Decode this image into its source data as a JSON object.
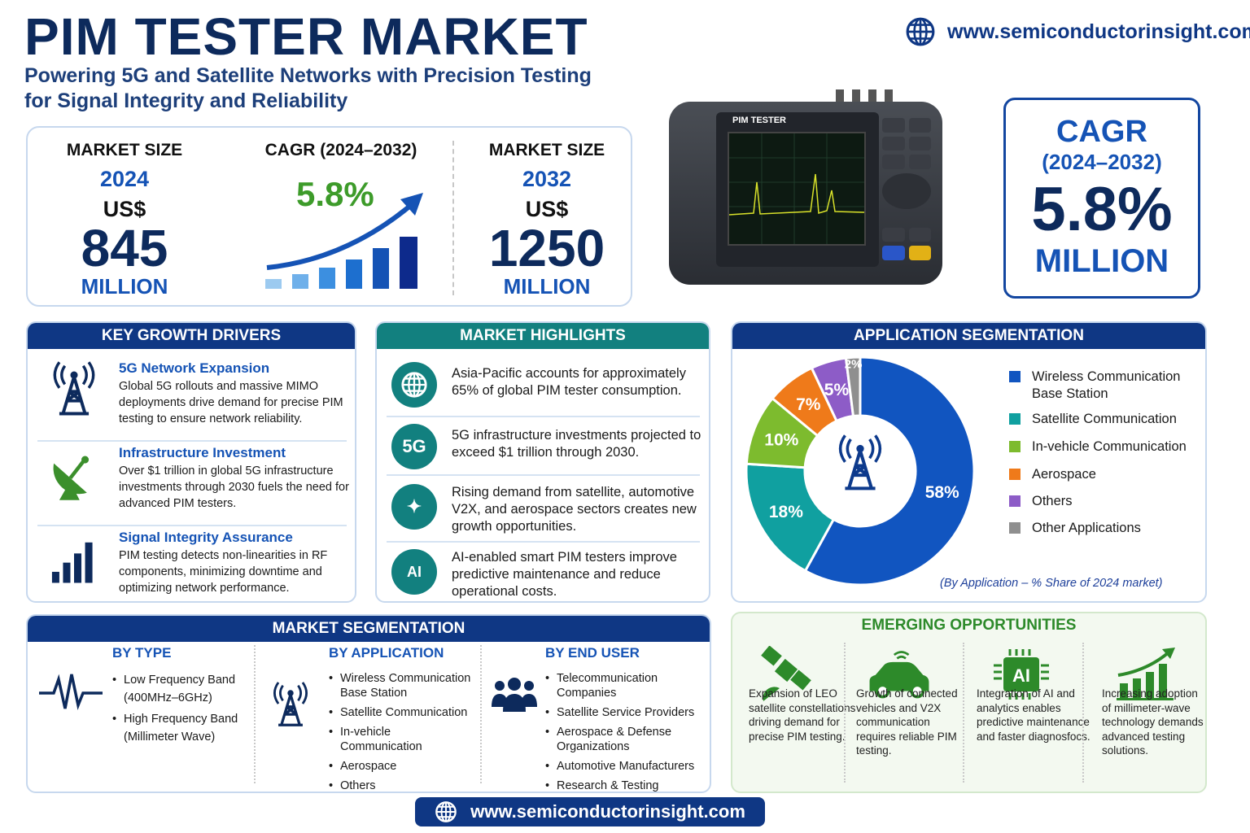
{
  "header": {
    "title": "PIM TESTER MARKET",
    "subtitle": "Powering 5G and Satellite Networks with Precision Testing for Signal Integrity and Reliability",
    "website": "www.semiconductorinsight.com",
    "icon": "globe-icon"
  },
  "market": {
    "left": {
      "label": "MARKET SIZE",
      "year": "2024",
      "currency": "US$",
      "value": "845",
      "unit": "MILLION"
    },
    "center": {
      "label": "CAGR (2024–2032)",
      "value": "5.8%"
    },
    "right": {
      "label": "MARKET SIZE",
      "year": "2032",
      "currency": "US$",
      "value": "1250",
      "unit": "MILLION"
    }
  },
  "device": {
    "label": "PIM TESTER"
  },
  "cagr_box": {
    "label": "CAGR",
    "period": "(2024–2032)",
    "value": "5.8%",
    "unit": "MILLION"
  },
  "drivers": {
    "title": "KEY GROWTH DRIVERS",
    "items": [
      {
        "title": "5G Network Expansion",
        "text": "Global 5G rollouts and massive MIMO deployments drive demand for precise PIM testing to ensure network reliability.",
        "icon": "cell-tower-icon"
      },
      {
        "title": "Infrastructure Investment",
        "text": "Over $1 trillion in global 5G infrastructure investments through 2030 fuels the need for advanced PIM testers.",
        "icon": "satellite-dish-icon"
      },
      {
        "title": "Signal Integrity Assurance",
        "text": "PIM testing detects non-linearities in RF components, minimizing downtime and optimizing network performance.",
        "icon": "signal-bars-icon"
      }
    ]
  },
  "highlights": {
    "title": "MARKET HIGHLIGHTS",
    "items": [
      {
        "icon": "globe-icon",
        "badge": "",
        "text": "Asia-Pacific accounts for approximately 65% of global PIM tester consumption."
      },
      {
        "icon": "5g-icon",
        "badge": "5G",
        "text": "5G infrastructure investments projected to exceed $1 trillion through 2030."
      },
      {
        "icon": "satellite-icon",
        "badge": "",
        "text": "Rising demand from satellite, automotive V2X, and aerospace sectors creates new growth opportunities."
      },
      {
        "icon": "ai-chip-icon",
        "badge": "AI",
        "text": "AI-enabled smart PIM testers improve predictive maintenance and reduce operational costs."
      }
    ]
  },
  "application": {
    "title": "APPLICATION SEGMENTATION",
    "caption": "(By Application – % Share of 2024 market)"
  },
  "chart_data": {
    "type": "pie",
    "donut": true,
    "start": "top",
    "direction": "clockwise",
    "categories": [
      "Wireless Communication Base Station",
      "Satellite Communication",
      "In-vehicle Communication",
      "Aerospace",
      "Others",
      "Other Applications"
    ],
    "values": [
      58,
      18,
      10,
      7,
      5,
      2
    ],
    "labels": [
      "58%",
      "18%",
      "10%",
      "7%",
      "5%",
      "2%"
    ],
    "colors": [
      "#1155c0",
      "#10a0a0",
      "#7dbb2e",
      "#ef7a1a",
      "#8d5cc7",
      "#8f8f8f"
    ],
    "legend": "right"
  },
  "segmentation": {
    "title": "MARKET SEGMENTATION",
    "by_type": {
      "title": "BY TYPE",
      "icon": "waveform-icon",
      "items": [
        "Low Frequency Band (400MHz–6GHz)",
        "High Frequency Band (Millimeter Wave)"
      ]
    },
    "by_application": {
      "title": "BY APPLICATION",
      "icon": "cell-tower-icon",
      "items": [
        "Wireless Communication Base Station",
        "Satellite Communication",
        "In-vehicle Communication",
        "Aerospace",
        "Others"
      ]
    },
    "by_end_user": {
      "title": "BY END USER",
      "icon": "users-icon",
      "items": [
        "Telecommunication Companies",
        "Satellite Service Providers",
        "Aerospace & Defense Organizations",
        "Automotive Manufacturers",
        "Research & Testing Laboratories"
      ]
    }
  },
  "opportunities": {
    "title": "EMERGING OPPORTUNITIES",
    "items": [
      {
        "icon": "satellite-icon",
        "text": "Expansion of LEO satellite constellations driving demand for precise PIM testing."
      },
      {
        "icon": "connected-car-icon",
        "text": "Growth of connected vehicles and V2X communication requires reliable PIM testing."
      },
      {
        "icon": "ai-chip-icon",
        "text": "Integration of AI and analytics enables predictive maintenance and faster diagnosfocs."
      },
      {
        "icon": "growth-chart-icon",
        "text": "Increasing adoption of millimeter-wave technology demands advanced testing solutions."
      }
    ]
  },
  "footer": {
    "website": "www.semiconductorinsight.com"
  }
}
